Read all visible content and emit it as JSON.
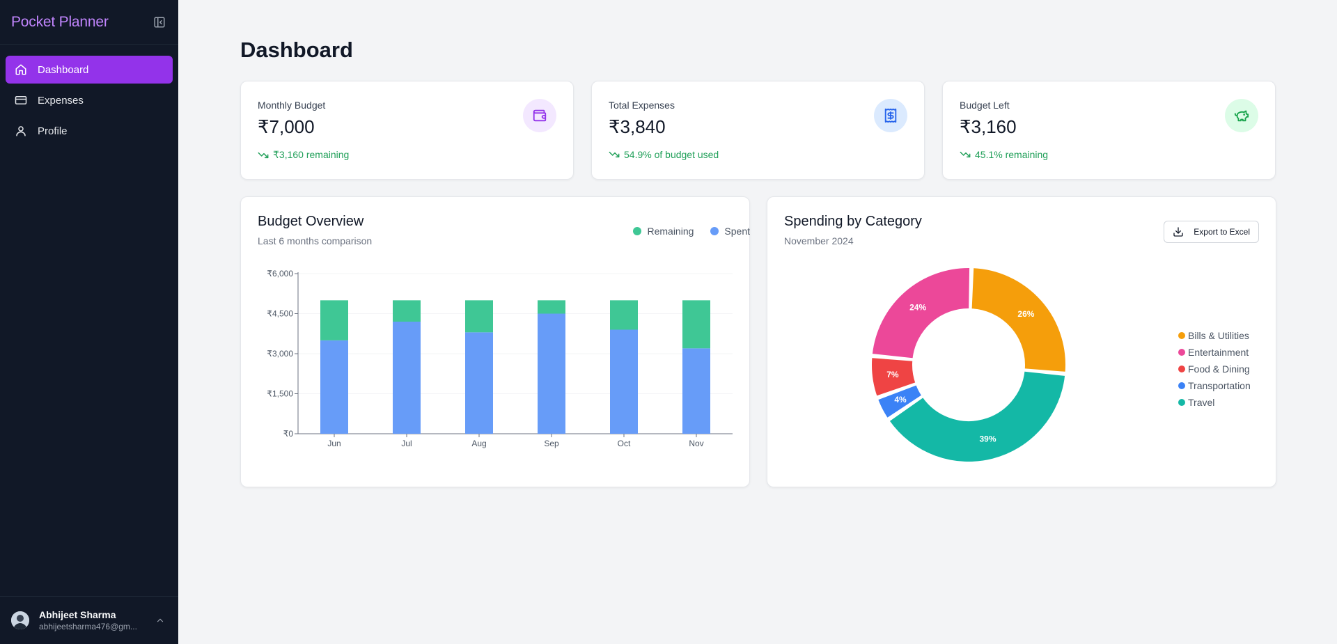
{
  "app": {
    "title": "Pocket Planner"
  },
  "sidebar": {
    "items": [
      {
        "label": "Dashboard",
        "icon": "home-icon",
        "active": true
      },
      {
        "label": "Expenses",
        "icon": "credit-card-icon",
        "active": false
      },
      {
        "label": "Profile",
        "icon": "user-icon",
        "active": false
      }
    ],
    "user": {
      "name": "Abhijeet Sharma",
      "email": "abhijeetsharma476@gm..."
    }
  },
  "page": {
    "title": "Dashboard"
  },
  "stats": [
    {
      "label": "Monthly Budget",
      "value": "₹7,000",
      "sub": "₹3,160 remaining",
      "icon": "wallet-icon",
      "icon_bg": "#f3e8ff",
      "icon_color": "#9333ea"
    },
    {
      "label": "Total Expenses",
      "value": "₹3,840",
      "sub": "54.9% of budget used",
      "icon": "receipt-icon",
      "icon_bg": "#dbeafe",
      "icon_color": "#2563eb"
    },
    {
      "label": "Budget Left",
      "value": "₹3,160",
      "sub": "45.1% remaining",
      "icon": "piggy-bank-icon",
      "icon_bg": "#dcfce7",
      "icon_color": "#16a34a"
    }
  ],
  "budget_overview": {
    "title": "Budget Overview",
    "subtitle": "Last 6 months comparison",
    "legend": [
      {
        "label": "Remaining",
        "color": "#3fc795"
      },
      {
        "label": "Spent",
        "color": "#679cf8"
      }
    ]
  },
  "spending": {
    "title": "Spending by Category",
    "subtitle": "November 2024",
    "export_label": "Export to Excel"
  },
  "chart_data": [
    {
      "type": "bar",
      "stacked": true,
      "title": "Budget Overview",
      "subtitle": "Last 6 months comparison",
      "categories": [
        "Jun",
        "Jul",
        "Aug",
        "Sep",
        "Oct",
        "Nov"
      ],
      "series": [
        {
          "name": "Spent",
          "color": "#679cf8",
          "values": [
            3500,
            4200,
            3800,
            4500,
            3900,
            3200
          ]
        },
        {
          "name": "Remaining",
          "color": "#3fc795",
          "values": [
            1500,
            800,
            1200,
            500,
            1100,
            1800
          ]
        }
      ],
      "yticks": [
        "₹0",
        "₹1,500",
        "₹3,000",
        "₹4,500",
        "₹6,000"
      ],
      "ylim": [
        0,
        6000
      ],
      "legend": "top-right",
      "grid": true
    },
    {
      "type": "pie",
      "donut": true,
      "title": "Spending by Category",
      "subtitle": "November 2024",
      "slices": [
        {
          "label": "Bills & Utilities",
          "value": 26,
          "display": "26%",
          "color": "#f59e0b"
        },
        {
          "label": "Travel",
          "value": 39,
          "display": "39%",
          "color": "#14b8a6"
        },
        {
          "label": "Transportation",
          "value": 4,
          "display": "4%",
          "color": "#3b82f6"
        },
        {
          "label": "Food & Dining",
          "value": 7,
          "display": "7%",
          "color": "#ef4444"
        },
        {
          "label": "Entertainment",
          "value": 24,
          "display": "24%",
          "color": "#ec4899"
        }
      ],
      "legend_order": [
        "Bills & Utilities",
        "Entertainment",
        "Food & Dining",
        "Transportation",
        "Travel"
      ],
      "legend": "right"
    }
  ]
}
